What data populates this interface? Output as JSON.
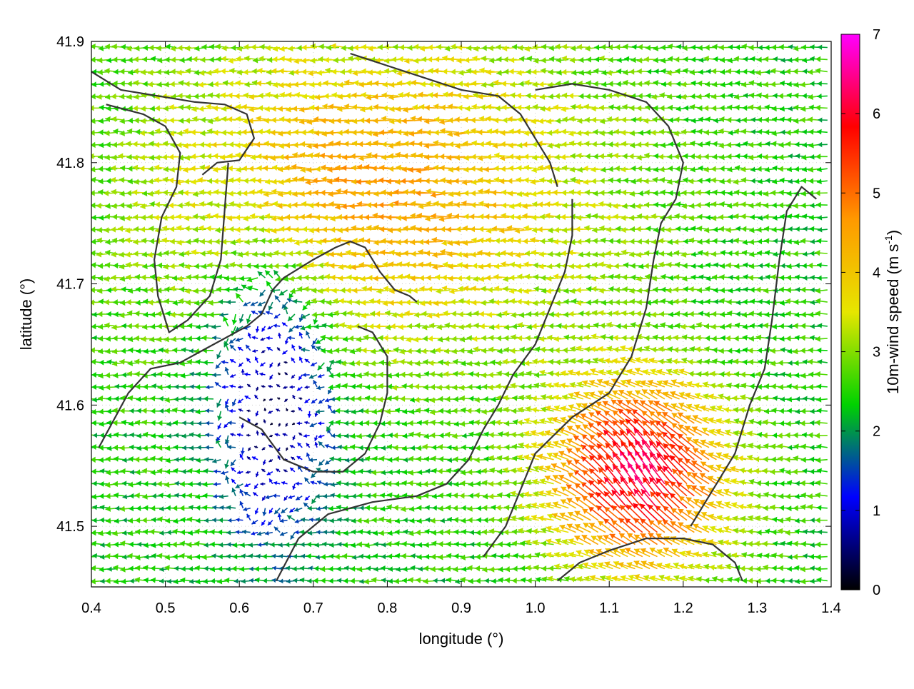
{
  "chart_data": {
    "type": "quiver",
    "title": "",
    "xlabel": "longitude (°)",
    "ylabel": "latitude (°)",
    "xlim": [
      0.4,
      1.4
    ],
    "ylim": [
      41.45,
      41.9
    ],
    "xticks": [
      "0.4",
      "0.5",
      "0.6",
      "0.7",
      "0.8",
      "0.9",
      "1.0",
      "1.1",
      "1.2",
      "1.3",
      "1.4"
    ],
    "yticks": [
      "41.5",
      "41.6",
      "41.7",
      "41.8",
      "41.9"
    ],
    "grid": true,
    "colorbar": {
      "label": "10m-wind speed (m s-1)",
      "label_text": "10m-wind speed (m s",
      "label_sup": "-1",
      "label_close": ")",
      "min": 0,
      "max": 7,
      "ticks": [
        "0",
        "1",
        "2",
        "3",
        "4",
        "5",
        "6",
        "7"
      ],
      "colors": [
        "#000000",
        "#0000ff",
        "#00d200",
        "#e6e600",
        "#ff9900",
        "#ff0000",
        "#ff00ff"
      ]
    },
    "vectors": "10 m wind vectors on a regular grid (~0.01° spacing); mostly easterly flow (pointing west): 4–5 m/s over the north-central area, 2–3 m/s elsewhere, <1.5 m/s in sheltered valleys around 0.6–0.7°E 41.5–41.7°N, and a 5–7 m/s south-easterly jet near 1.05–1.25°E 41.47–41.62°N",
    "regimes": [
      {
        "name": "north-central easterlies",
        "lon": [
          0.55,
          1.05
        ],
        "lat": [
          41.66,
          41.9
        ],
        "speed_ms": 4.5,
        "direction": "from east"
      },
      {
        "name": "southeast jet",
        "lon": [
          1.02,
          1.28
        ],
        "lat": [
          41.46,
          41.62
        ],
        "speed_ms": 6.2,
        "direction": "from southeast"
      },
      {
        "name": "sheltered valley",
        "lon": [
          0.58,
          0.72
        ],
        "lat": [
          41.5,
          41.7
        ],
        "speed_ms": 0.8,
        "direction": "variable"
      },
      {
        "name": "background",
        "lon": [
          0.4,
          1.4
        ],
        "lat": [
          41.45,
          41.9
        ],
        "speed_ms": 2.4,
        "direction": "from east"
      }
    ],
    "contours": [
      {
        "name": "ridge-west",
        "points": [
          [
            0.4,
            41.875
          ],
          [
            0.44,
            41.86
          ],
          [
            0.49,
            41.855
          ],
          [
            0.54,
            41.85
          ],
          [
            0.58,
            41.848
          ],
          [
            0.61,
            41.84
          ],
          [
            0.62,
            41.82
          ],
          [
            0.6,
            41.802
          ],
          [
            0.57,
            41.8
          ],
          [
            0.55,
            41.79
          ]
        ]
      },
      {
        "name": "valley-west-loop",
        "points": [
          [
            0.42,
            41.848
          ],
          [
            0.47,
            41.84
          ],
          [
            0.5,
            41.83
          ],
          [
            0.52,
            41.808
          ],
          [
            0.515,
            41.78
          ],
          [
            0.495,
            41.755
          ],
          [
            0.485,
            41.72
          ],
          [
            0.49,
            41.69
          ],
          [
            0.505,
            41.66
          ],
          [
            0.53,
            41.67
          ],
          [
            0.56,
            41.69
          ],
          [
            0.575,
            41.72
          ],
          [
            0.58,
            41.76
          ],
          [
            0.585,
            41.8
          ]
        ]
      },
      {
        "name": "valley-central",
        "points": [
          [
            0.41,
            41.565
          ],
          [
            0.45,
            41.61
          ],
          [
            0.48,
            41.63
          ],
          [
            0.52,
            41.635
          ],
          [
            0.55,
            41.645
          ],
          [
            0.58,
            41.655
          ],
          [
            0.61,
            41.665
          ],
          [
            0.63,
            41.675
          ],
          [
            0.645,
            41.695
          ],
          [
            0.66,
            41.705
          ],
          [
            0.7,
            41.72
          ],
          [
            0.73,
            41.73
          ],
          [
            0.75,
            41.735
          ],
          [
            0.77,
            41.73
          ],
          [
            0.79,
            41.71
          ],
          [
            0.81,
            41.695
          ],
          [
            0.83,
            41.69
          ],
          [
            0.84,
            41.685
          ]
        ]
      },
      {
        "name": "valley-inner",
        "points": [
          [
            0.6,
            41.59
          ],
          [
            0.63,
            41.58
          ],
          [
            0.66,
            41.555
          ],
          [
            0.7,
            41.545
          ],
          [
            0.74,
            41.545
          ],
          [
            0.77,
            41.56
          ],
          [
            0.79,
            41.585
          ],
          [
            0.8,
            41.61
          ],
          [
            0.8,
            41.64
          ],
          [
            0.78,
            41.66
          ],
          [
            0.76,
            41.665
          ]
        ]
      },
      {
        "name": "basin-south",
        "points": [
          [
            0.65,
            41.455
          ],
          [
            0.68,
            41.49
          ],
          [
            0.72,
            41.51
          ],
          [
            0.78,
            41.52
          ],
          [
            0.84,
            41.525
          ],
          [
            0.88,
            41.535
          ],
          [
            0.91,
            41.555
          ],
          [
            0.93,
            41.58
          ],
          [
            0.95,
            41.6
          ],
          [
            0.97,
            41.625
          ],
          [
            1.0,
            41.65
          ],
          [
            1.02,
            41.68
          ],
          [
            1.04,
            41.71
          ],
          [
            1.05,
            41.74
          ],
          [
            1.05,
            41.77
          ]
        ]
      },
      {
        "name": "ridge-east",
        "points": [
          [
            0.93,
            41.475
          ],
          [
            0.96,
            41.5
          ],
          [
            0.98,
            41.53
          ],
          [
            1.0,
            41.56
          ],
          [
            1.05,
            41.59
          ],
          [
            1.1,
            41.61
          ],
          [
            1.13,
            41.64
          ],
          [
            1.15,
            41.68
          ],
          [
            1.16,
            41.72
          ],
          [
            1.17,
            41.75
          ],
          [
            1.19,
            41.77
          ],
          [
            1.2,
            41.8
          ],
          [
            1.18,
            41.83
          ],
          [
            1.15,
            41.85
          ],
          [
            1.1,
            41.86
          ],
          [
            1.05,
            41.865
          ],
          [
            1.0,
            41.86
          ]
        ]
      },
      {
        "name": "ridge-far-east",
        "points": [
          [
            1.21,
            41.5
          ],
          [
            1.24,
            41.53
          ],
          [
            1.27,
            41.56
          ],
          [
            1.29,
            41.6
          ],
          [
            1.31,
            41.63
          ],
          [
            1.32,
            41.67
          ],
          [
            1.33,
            41.72
          ],
          [
            1.34,
            41.76
          ],
          [
            1.36,
            41.78
          ],
          [
            1.38,
            41.77
          ]
        ]
      },
      {
        "name": "north-crest",
        "points": [
          [
            0.75,
            41.89
          ],
          [
            0.8,
            41.88
          ],
          [
            0.85,
            41.87
          ],
          [
            0.9,
            41.86
          ],
          [
            0.95,
            41.855
          ],
          [
            0.98,
            41.84
          ],
          [
            1.0,
            41.82
          ],
          [
            1.02,
            41.8
          ],
          [
            1.03,
            41.78
          ]
        ]
      },
      {
        "name": "south-east-shelf",
        "points": [
          [
            1.03,
            41.455
          ],
          [
            1.06,
            41.47
          ],
          [
            1.1,
            41.48
          ],
          [
            1.15,
            41.49
          ],
          [
            1.2,
            41.49
          ],
          [
            1.24,
            41.485
          ],
          [
            1.27,
            41.47
          ],
          [
            1.28,
            41.455
          ]
        ]
      }
    ]
  }
}
